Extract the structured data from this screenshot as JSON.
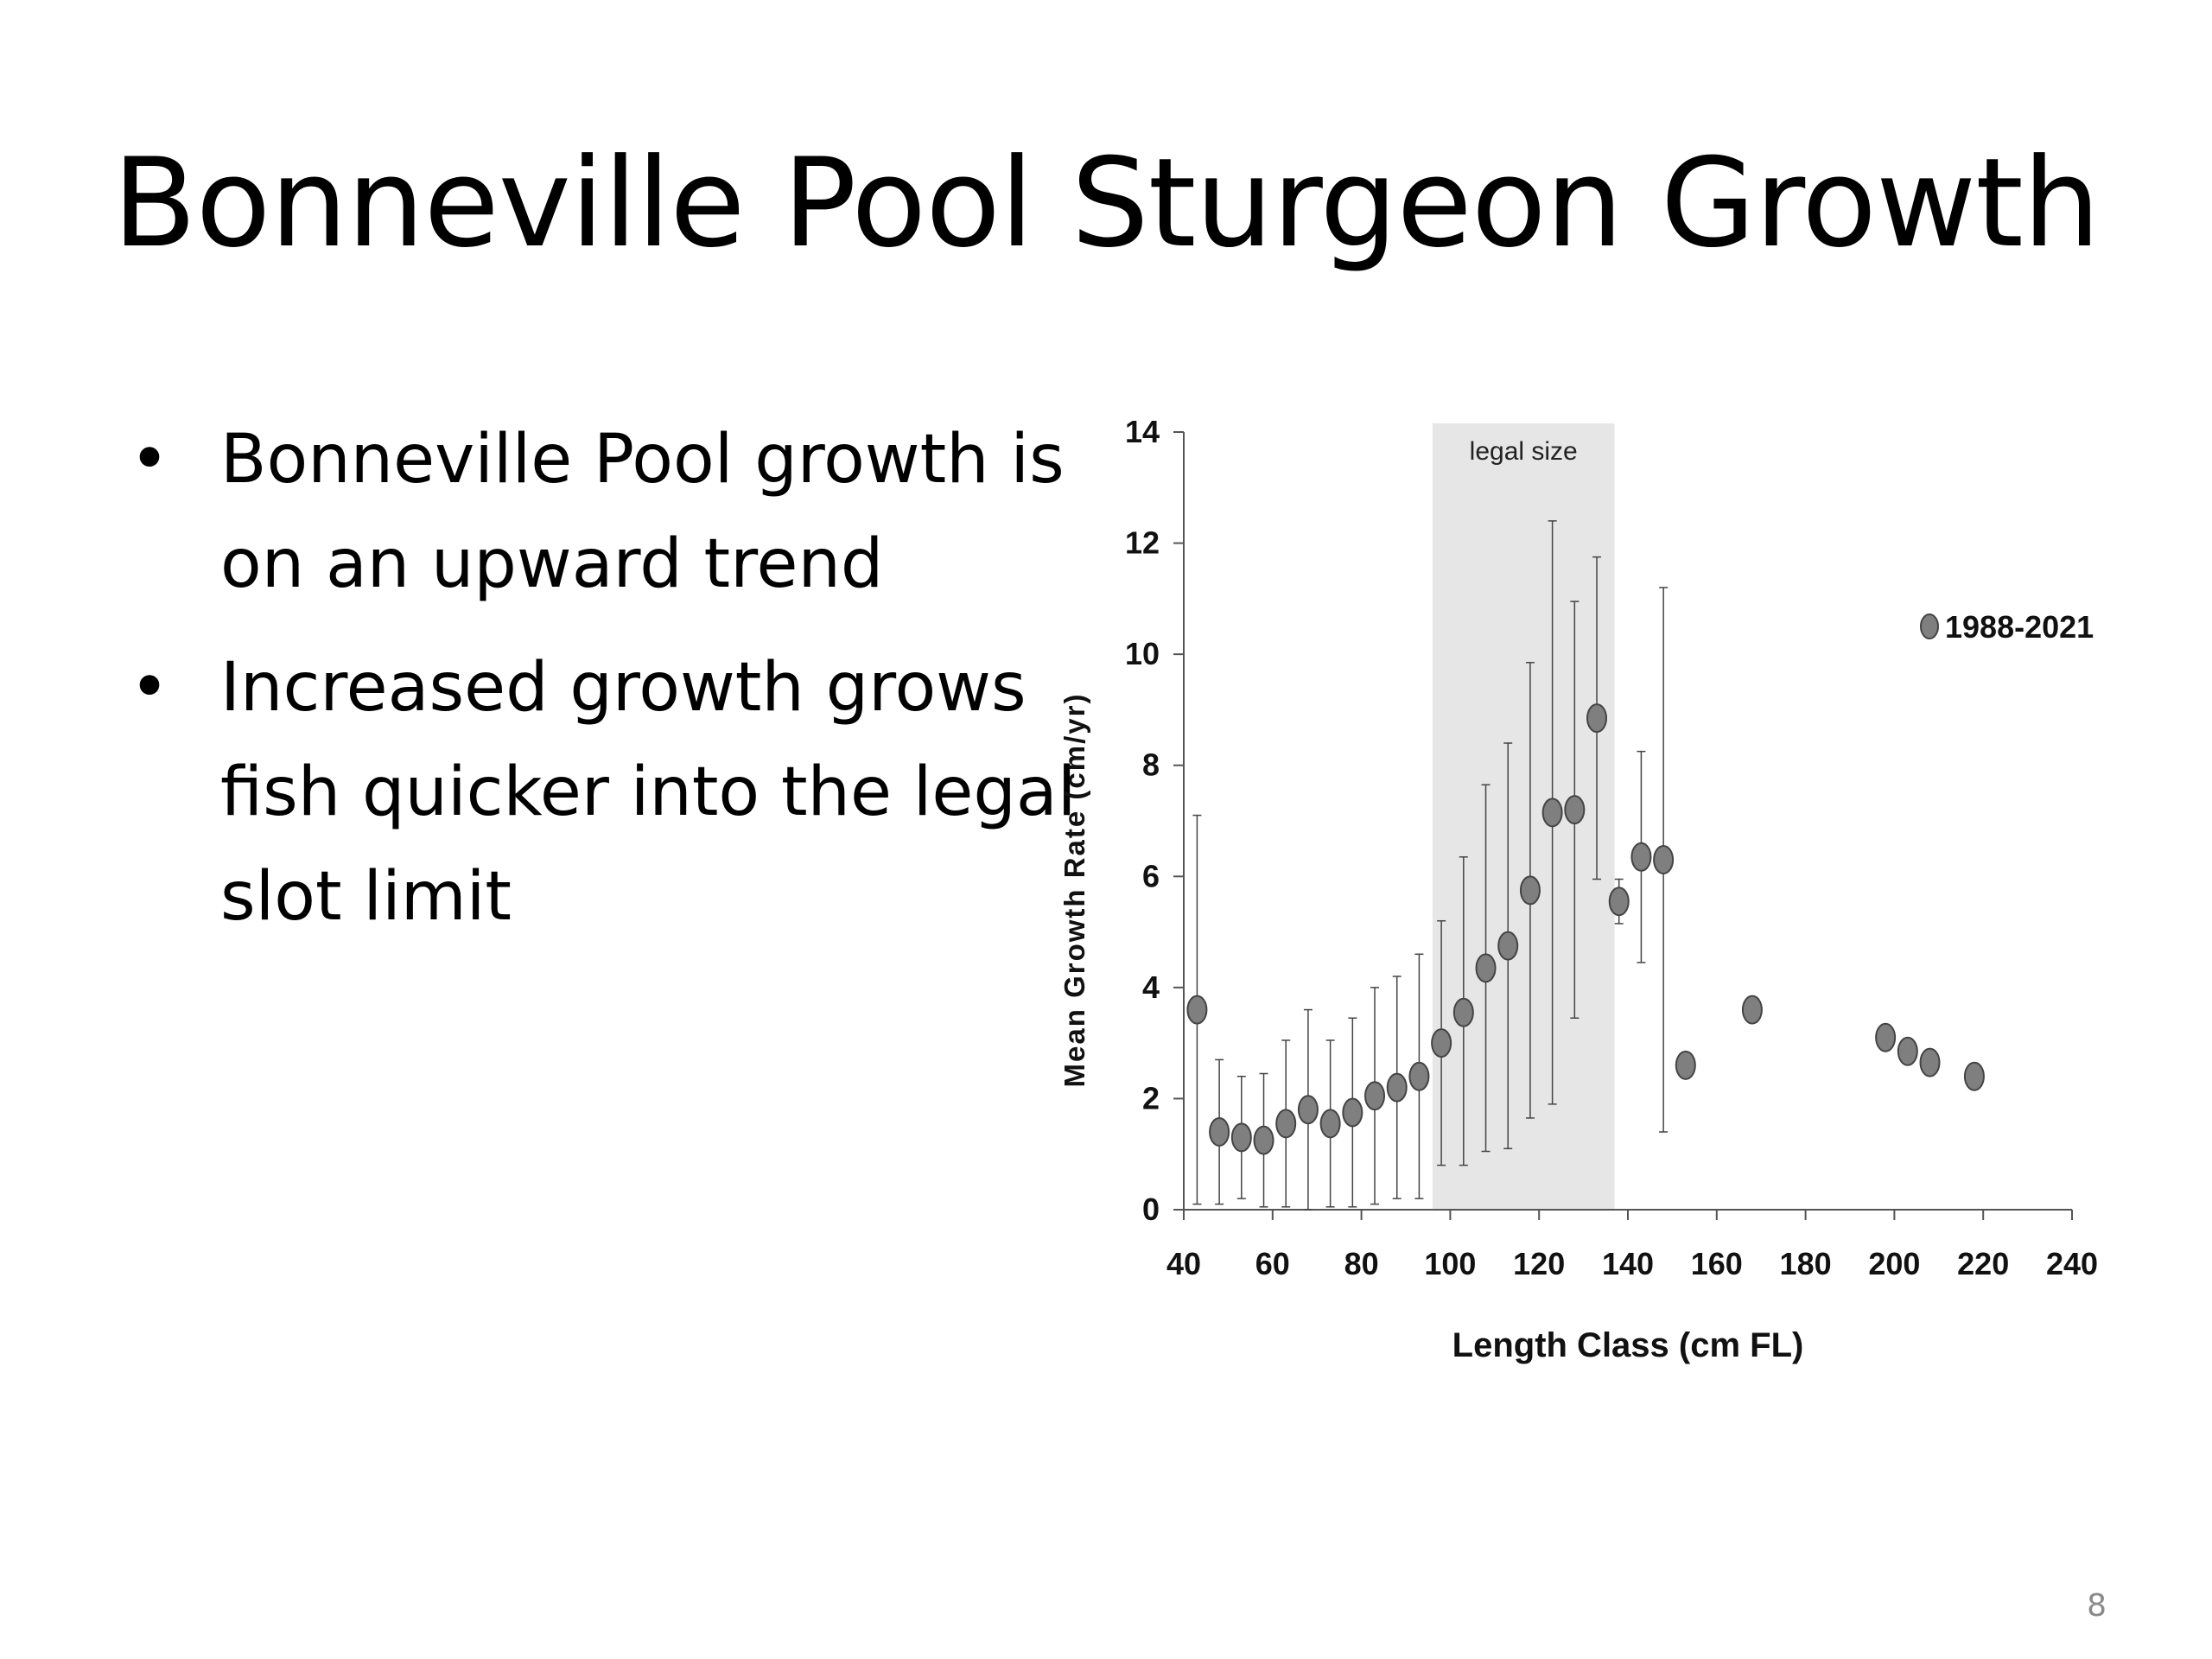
{
  "slide": {
    "title": "Bonneville Pool Sturgeon Growth",
    "bullets": [
      "Bonneville Pool growth is on an upward trend",
      "Increased growth grows fish quicker into the legal slot limit"
    ],
    "bullet_char": "•",
    "page_number": "8"
  },
  "chart_data": {
    "type": "scatter",
    "xlabel": "Length Class (cm FL)",
    "ylabel": "Mean Growth Rate (cm/yr)",
    "xlim": [
      40,
      240
    ],
    "ylim": [
      0,
      14
    ],
    "xticks": [
      40,
      60,
      80,
      100,
      120,
      140,
      160,
      180,
      200,
      220,
      240
    ],
    "yticks": [
      0,
      2,
      4,
      6,
      8,
      10,
      12,
      14
    ],
    "grid": false,
    "legend_position": "top-right",
    "shaded_region": {
      "label": "legal size",
      "x_range": [
        96,
        137
      ],
      "color": "#e6e6e6"
    },
    "marker_color": "#7f7f7f",
    "series": [
      {
        "name": "1988-2021",
        "points": [
          {
            "x": 43,
            "y": 3.6,
            "err_low": 0.1,
            "err_high": 7.1
          },
          {
            "x": 48,
            "y": 1.4,
            "err_low": 0.1,
            "err_high": 2.7
          },
          {
            "x": 53,
            "y": 1.3,
            "err_low": 0.2,
            "err_high": 2.4
          },
          {
            "x": 58,
            "y": 1.25,
            "err_low": 0.05,
            "err_high": 2.45
          },
          {
            "x": 63,
            "y": 1.55,
            "err_low": 0.05,
            "err_high": 3.05
          },
          {
            "x": 68,
            "y": 1.8,
            "err_low": 0.0,
            "err_high": 3.6
          },
          {
            "x": 73,
            "y": 1.55,
            "err_low": 0.05,
            "err_high": 3.05
          },
          {
            "x": 78,
            "y": 1.75,
            "err_low": 0.05,
            "err_high": 3.45
          },
          {
            "x": 83,
            "y": 2.05,
            "err_low": 0.1,
            "err_high": 4.0
          },
          {
            "x": 88,
            "y": 2.2,
            "err_low": 0.2,
            "err_high": 4.2
          },
          {
            "x": 93,
            "y": 2.4,
            "err_low": 0.2,
            "err_high": 4.6
          },
          {
            "x": 98,
            "y": 3.0,
            "err_low": 0.8,
            "err_high": 5.2
          },
          {
            "x": 103,
            "y": 3.55,
            "err_low": 0.8,
            "err_high": 6.35
          },
          {
            "x": 108,
            "y": 4.35,
            "err_low": 1.05,
            "err_high": 7.65
          },
          {
            "x": 113,
            "y": 4.75,
            "err_low": 1.1,
            "err_high": 8.4
          },
          {
            "x": 118,
            "y": 5.75,
            "err_low": 1.65,
            "err_high": 9.85
          },
          {
            "x": 123,
            "y": 7.15,
            "err_low": 1.9,
            "err_high": 12.4
          },
          {
            "x": 128,
            "y": 7.2,
            "err_low": 3.45,
            "err_high": 10.95
          },
          {
            "x": 133,
            "y": 8.85,
            "err_low": 5.95,
            "err_high": 11.75
          },
          {
            "x": 138,
            "y": 5.55,
            "err_low": 5.15,
            "err_high": 5.95
          },
          {
            "x": 143,
            "y": 6.35,
            "err_low": 4.45,
            "err_high": 8.25
          },
          {
            "x": 148,
            "y": 6.3,
            "err_low": 1.4,
            "err_high": 11.2
          },
          {
            "x": 153,
            "y": 2.6
          },
          {
            "x": 168,
            "y": 3.6
          },
          {
            "x": 198,
            "y": 3.1
          },
          {
            "x": 203,
            "y": 2.85
          },
          {
            "x": 208,
            "y": 2.65
          },
          {
            "x": 218,
            "y": 2.4
          }
        ]
      }
    ]
  }
}
